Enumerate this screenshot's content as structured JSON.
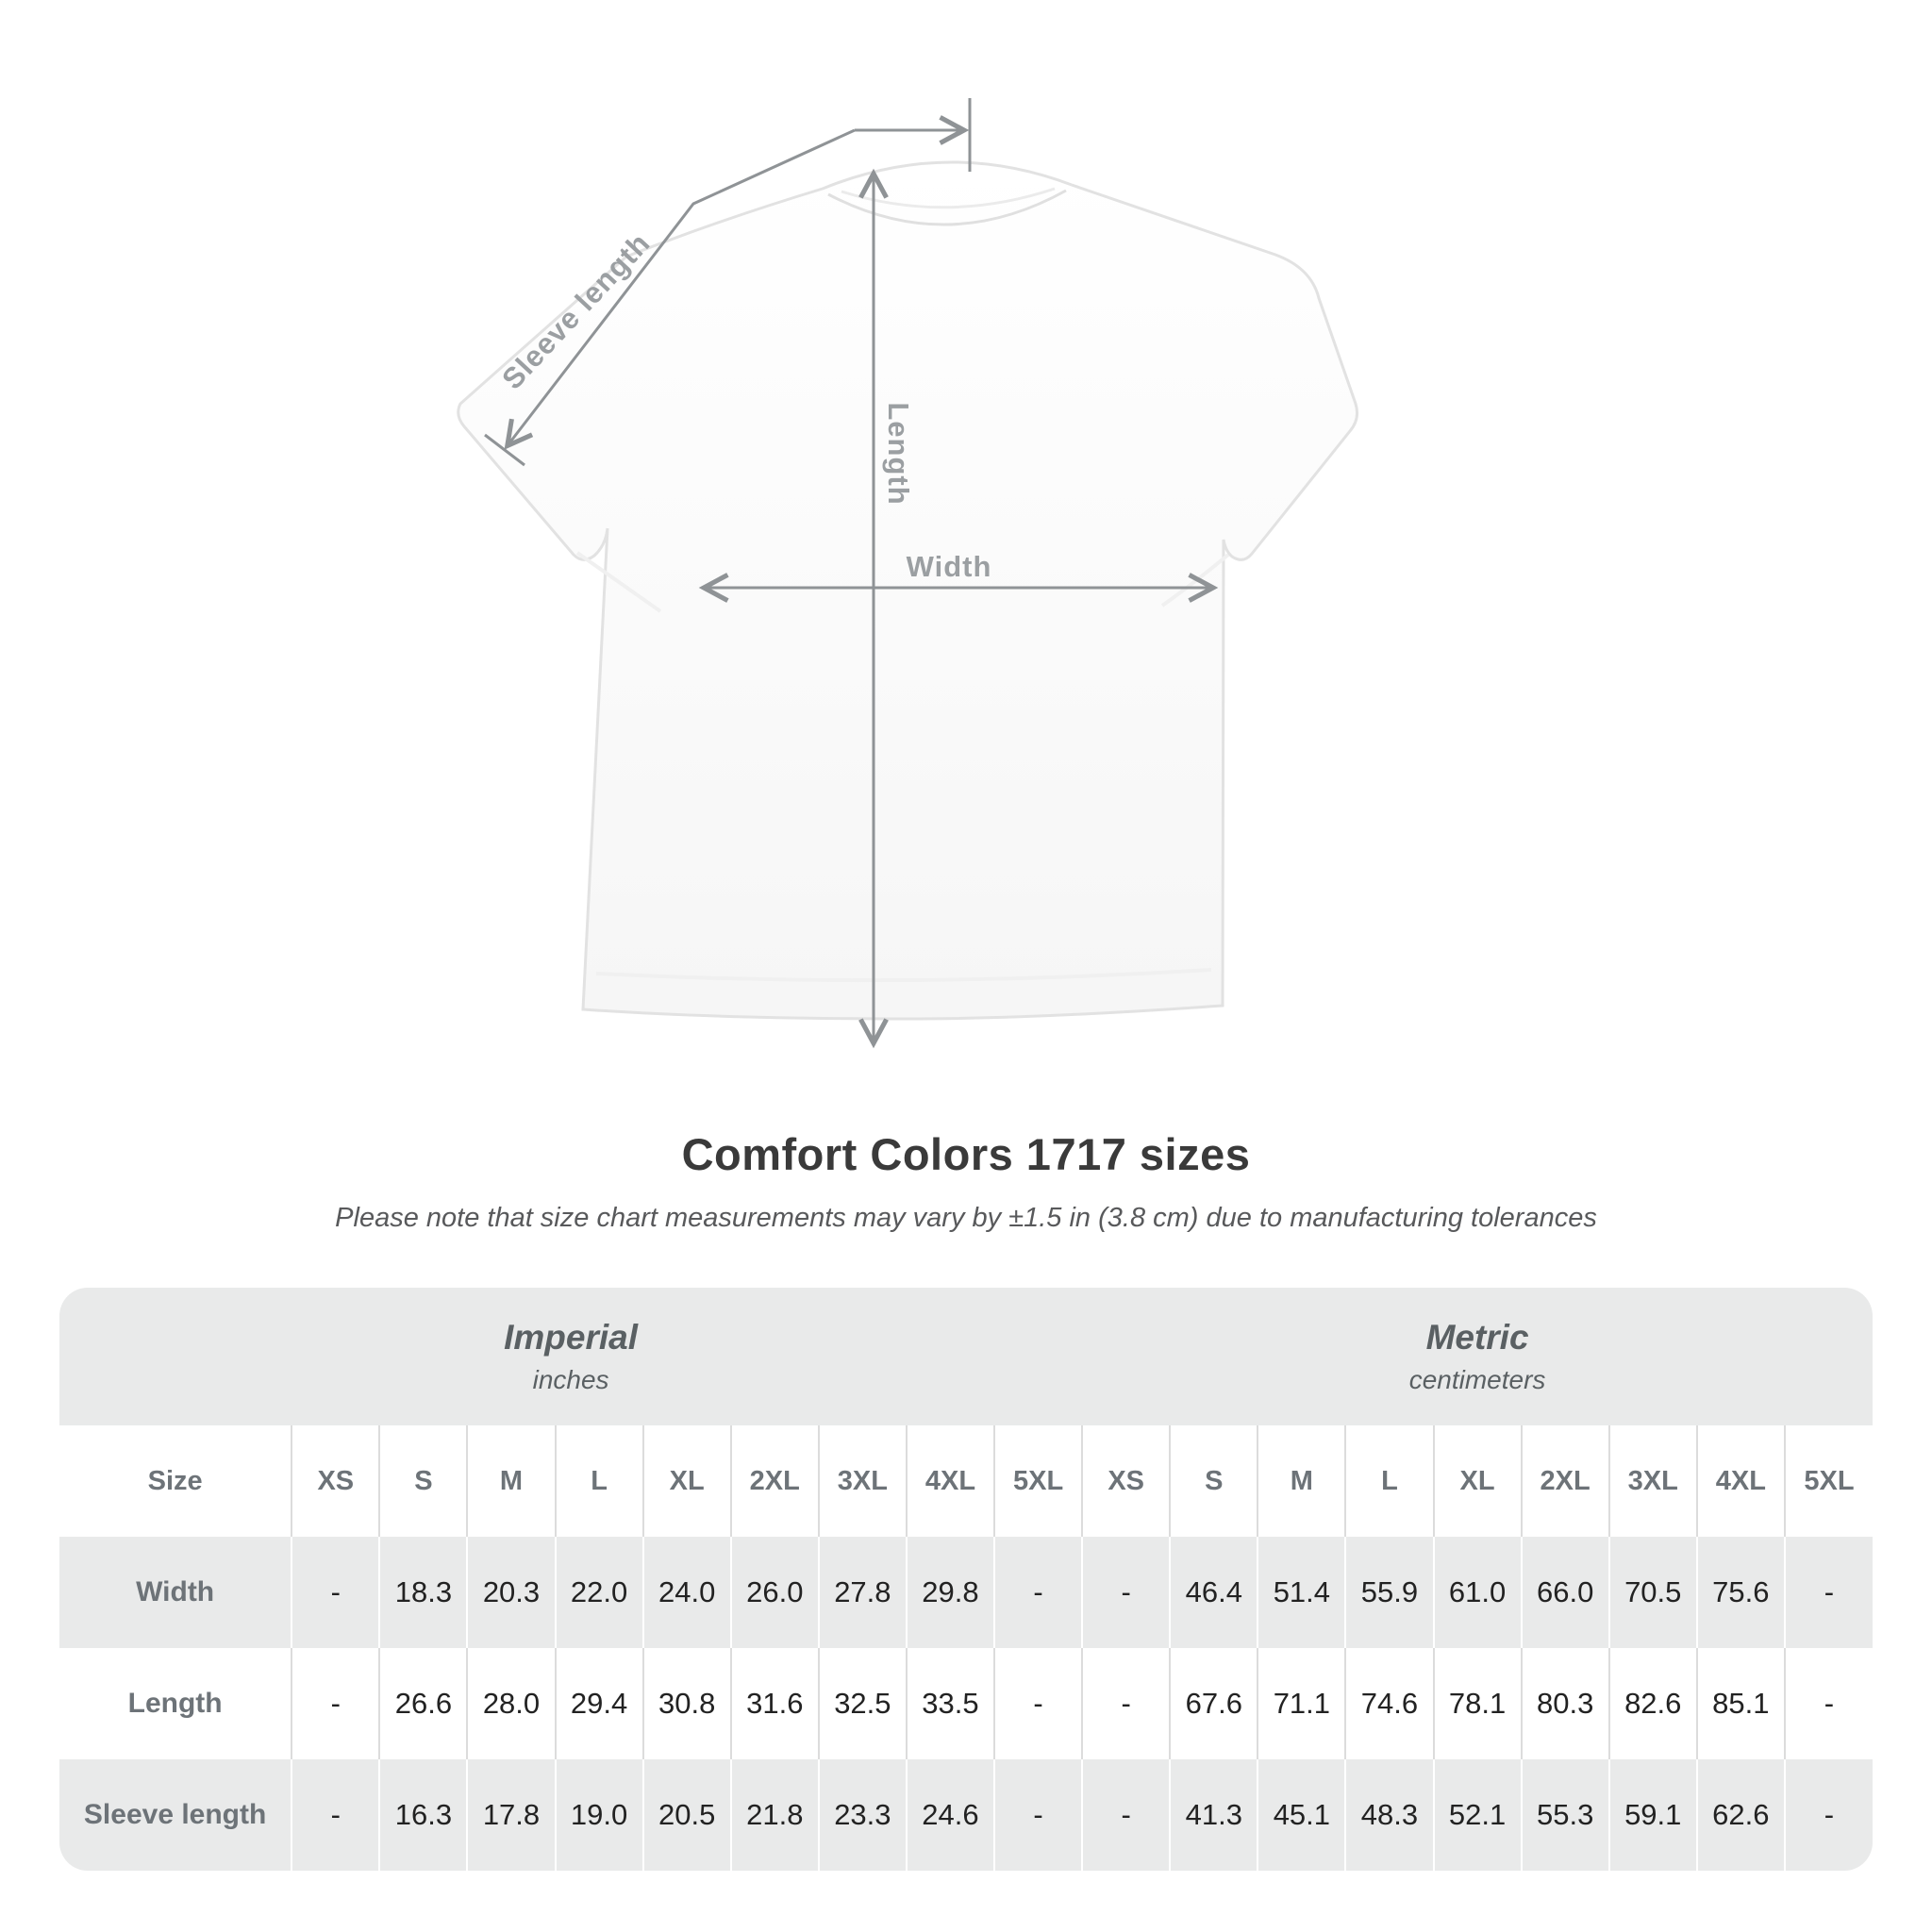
{
  "diagram": {
    "labels": {
      "sleeve": "Sleeve length",
      "length": "Length",
      "width": "Width"
    }
  },
  "title": "Comfort Colors 1717 sizes",
  "note": "Please note that size chart measurements may vary by ±1.5 in (3.8 cm) due to manufacturing tolerances",
  "table": {
    "unit_groups": [
      {
        "name": "Imperial",
        "unit": "inches"
      },
      {
        "name": "Metric",
        "unit": "centimeters"
      }
    ],
    "size_label": "Size",
    "sizes": [
      "XS",
      "S",
      "M",
      "L",
      "XL",
      "2XL",
      "3XL",
      "4XL",
      "5XL"
    ],
    "rows": [
      {
        "label": "Width",
        "imperial": [
          "-",
          "18.3",
          "20.3",
          "22.0",
          "24.0",
          "26.0",
          "27.8",
          "29.8",
          "-"
        ],
        "metric": [
          "-",
          "46.4",
          "51.4",
          "55.9",
          "61.0",
          "66.0",
          "70.5",
          "75.6",
          "-"
        ]
      },
      {
        "label": "Length",
        "imperial": [
          "-",
          "26.6",
          "28.0",
          "29.4",
          "30.8",
          "31.6",
          "32.5",
          "33.5",
          "-"
        ],
        "metric": [
          "-",
          "67.6",
          "71.1",
          "74.6",
          "78.1",
          "80.3",
          "82.6",
          "85.1",
          "-"
        ]
      },
      {
        "label": "Sleeve length",
        "imperial": [
          "-",
          "16.3",
          "17.8",
          "19.0",
          "20.5",
          "21.8",
          "23.3",
          "24.6",
          "-"
        ],
        "metric": [
          "-",
          "41.3",
          "45.1",
          "48.3",
          "52.1",
          "55.3",
          "59.1",
          "62.6",
          "-"
        ]
      }
    ]
  },
  "colors": {
    "title_text": "#3a3a3a",
    "note_text": "#58595b",
    "table_bg": "#e9eaea",
    "header_text": "#6d7378",
    "value_text": "#222222",
    "measure_line": "#8f9396",
    "measure_label_text": "#9b9fa2",
    "row_separator_on_white": "#dcdcdc",
    "row_separator_on_gray": "#ffffff"
  }
}
